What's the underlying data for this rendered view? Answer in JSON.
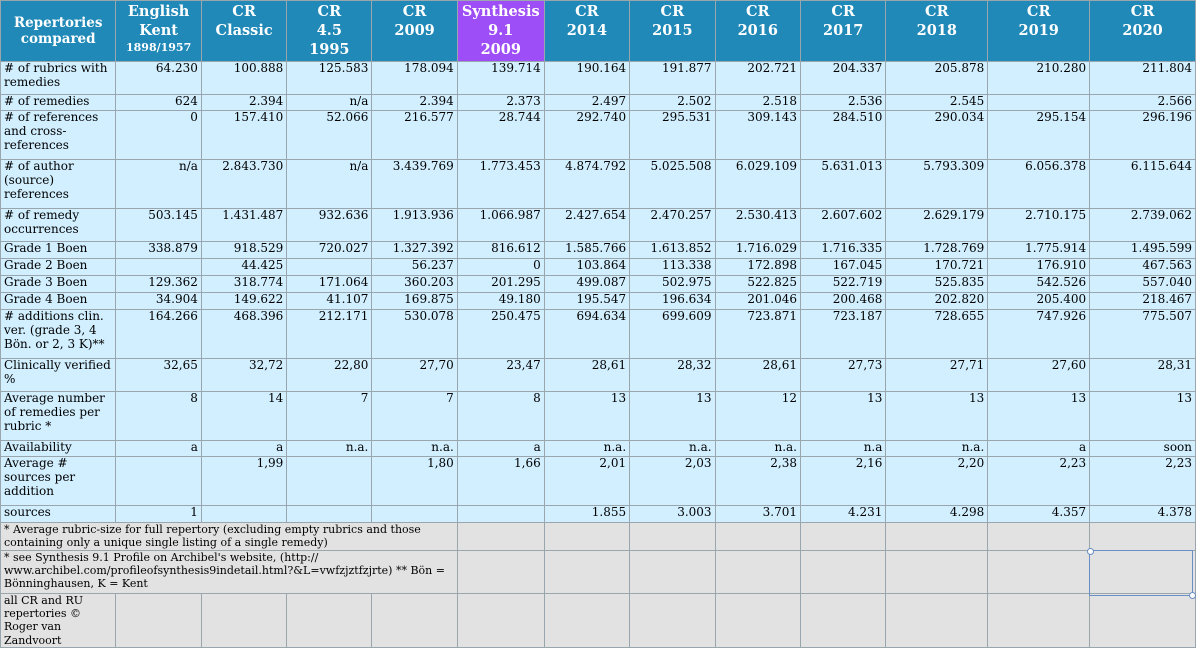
{
  "table": {
    "columns": [
      {
        "lines": [
          "Repertories",
          "compared"
        ]
      },
      {
        "lines": [
          "English",
          "Kent"
        ],
        "sub": "1898/1957"
      },
      {
        "lines": [
          "CR",
          "Classic"
        ]
      },
      {
        "lines": [
          "CR",
          "4.5",
          "1995"
        ]
      },
      {
        "lines": [
          "CR",
          "2009"
        ]
      },
      {
        "lines": [
          "Synthesis",
          "9.1",
          "2009"
        ],
        "highlight": "#9e4ef6"
      },
      {
        "lines": [
          "CR",
          "2014"
        ]
      },
      {
        "lines": [
          "CR",
          "2015"
        ]
      },
      {
        "lines": [
          "CR",
          "2016"
        ]
      },
      {
        "lines": [
          "CR",
          "2017"
        ]
      },
      {
        "lines": [
          "CR",
          "2018"
        ]
      },
      {
        "lines": [
          "CR",
          "2019"
        ]
      },
      {
        "lines": [
          "CR",
          "2020"
        ]
      }
    ],
    "rows": [
      {
        "label": "# of rubrics with remedies",
        "cells": [
          "64.230",
          "100.888",
          "125.583",
          "178.094",
          "139.714",
          "190.164",
          "191.877",
          "202.721",
          "204.337",
          "205.878",
          "210.280",
          "211.804"
        ]
      },
      {
        "label": "# of remedies",
        "cells": [
          "624",
          "2.394",
          "n/a",
          "2.394",
          "2.373",
          "2.497",
          "2.502",
          "2.518",
          "2.536",
          "2.545",
          "",
          "2.566"
        ]
      },
      {
        "label": "# of references and cross-references",
        "cells": [
          "0",
          "157.410",
          "52.066",
          "216.577",
          "28.744",
          "292.740",
          "295.531",
          "309.143",
          "284.510",
          "290.034",
          "295.154",
          "296.196"
        ]
      },
      {
        "label": "# of author (source) references",
        "cells": [
          "n/a",
          "2.843.730",
          "n/a",
          "3.439.769",
          "1.773.453",
          "4.874.792",
          "5.025.508",
          "6.029.109",
          "5.631.013",
          "5.793.309",
          "6.056.378",
          "6.115.644"
        ]
      },
      {
        "label": "# of remedy occurrences",
        "cells": [
          "503.145",
          "1.431.487",
          "932.636",
          "1.913.936",
          "1.066.987",
          "2.427.654",
          "2.470.257",
          "2.530.413",
          "2.607.602",
          "2.629.179",
          "2.710.175",
          "2.739.062"
        ]
      },
      {
        "label": "Grade 1 Boen",
        "cells": [
          "338.879",
          "918.529",
          "720.027",
          "1.327.392",
          "816.612",
          "1.585.766",
          "1.613.852",
          "1.716.029",
          "1.716.335",
          "1.728.769",
          "1.775.914",
          "1.495.599"
        ]
      },
      {
        "label": "Grade 2 Boen",
        "cells": [
          "",
          "44.425",
          "",
          "56.237",
          "0",
          "103.864",
          "113.338",
          "172.898",
          "167.045",
          "170.721",
          "176.910",
          "467.563"
        ]
      },
      {
        "label": "Grade 3 Boen",
        "cells": [
          "129.362",
          "318.774",
          "171.064",
          "360.203",
          "201.295",
          "499.087",
          "502.975",
          "522.825",
          "522.719",
          "525.835",
          "542.526",
          "557.040"
        ]
      },
      {
        "label": "Grade 4 Boen",
        "cells": [
          "34.904",
          "149.622",
          "41.107",
          "169.875",
          "49.180",
          "195.547",
          "196.634",
          "201.046",
          "200.468",
          "202.820",
          "205.400",
          "218.467"
        ]
      },
      {
        "label": "# additions clin. ver. (grade 3, 4 Bön. or 2, 3 K)**",
        "cells": [
          "164.266",
          "468.396",
          "212.171",
          "530.078",
          "250.475",
          "694.634",
          "699.609",
          "723.871",
          "723.187",
          "728.655",
          "747.926",
          "775.507"
        ]
      },
      {
        "label": "Clinically verified %",
        "cells": [
          "32,65",
          "32,72",
          "22,80",
          "27,70",
          "23,47",
          "28,61",
          "28,32",
          "28,61",
          "27,73",
          "27,71",
          "27,60",
          "28,31"
        ]
      },
      {
        "label": "Average number of remedies per rubric *",
        "cells": [
          "8",
          "14",
          "7",
          "7",
          "8",
          "13",
          "13",
          "12",
          "13",
          "13",
          "13",
          "13"
        ]
      },
      {
        "label": "Availability",
        "cells": [
          "a",
          "a",
          "n.a.",
          "n.a.",
          "a",
          "n.a.",
          "n.a.",
          "n.a.",
          "n.a",
          "n.a.",
          "a",
          "soon"
        ]
      },
      {
        "label": "Average # sources per addition",
        "cells": [
          "",
          "1,99",
          "",
          "1,80",
          "1,66",
          "2,01",
          "2,03",
          "2,38",
          "2,16",
          "2,20",
          "2,23",
          "2,23"
        ]
      },
      {
        "label": "sources",
        "cells": [
          "1",
          "",
          "",
          "",
          "",
          "1.855",
          "3.003",
          "3.701",
          "4.231",
          "4.298",
          "4.357",
          "4.378"
        ]
      }
    ],
    "notes": [
      "* Average rubric-size for full repertory (excluding empty rubrics and those containing only a unique single listing of a single remedy)",
      "* see Synthesis 9.1 Profile on Archibel's website, (http:// www.archibel.com/profileofsynthesis9indetail.html?&L=vwfzjztfzjrte) ** Bön = Bönninghausen, K = Kent",
      "all CR and RU repertories © Roger van Zandvoort"
    ]
  },
  "colors": {
    "header": "#2089b8",
    "highlight_header": "#9e4ef6",
    "data_cell": "#d1efff",
    "note_cell": "#e2e2e2"
  }
}
